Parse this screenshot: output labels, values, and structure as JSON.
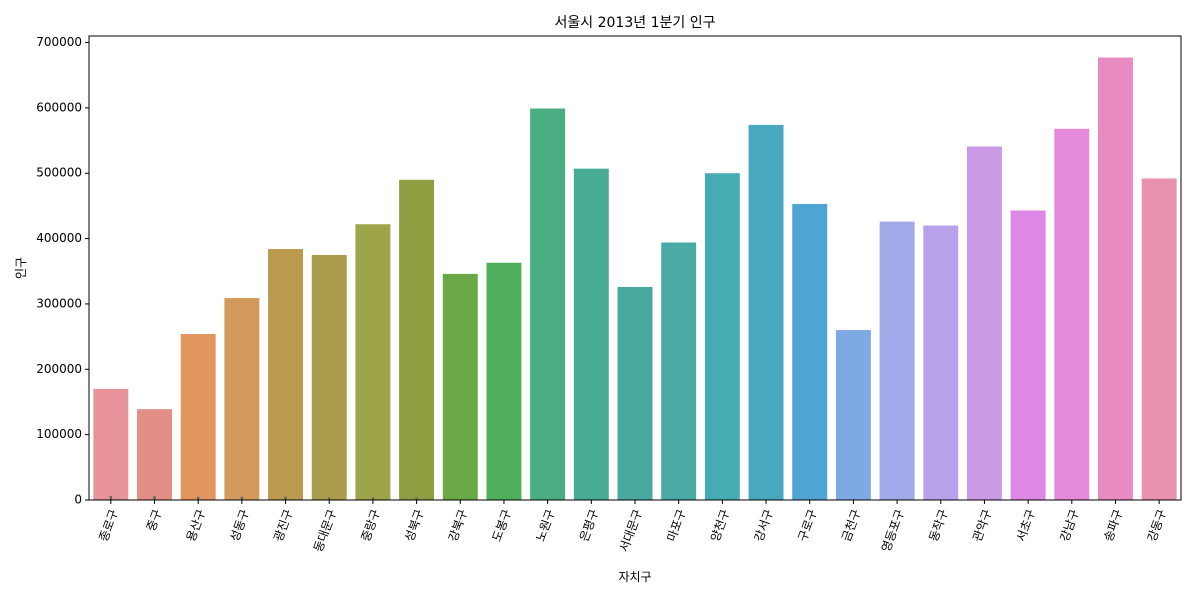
{
  "chart_data": {
    "type": "bar",
    "title": "서울시 2013년 1분기 인구",
    "xlabel": "자치구",
    "ylabel": "인구",
    "ylim": [
      0,
      710000
    ],
    "yticks": [
      0,
      100000,
      200000,
      300000,
      400000,
      500000,
      600000,
      700000
    ],
    "grid": false,
    "categories": [
      "종로구",
      "중구",
      "용산구",
      "성동구",
      "광진구",
      "동대문구",
      "중랑구",
      "성북구",
      "강북구",
      "도봉구",
      "노원구",
      "은평구",
      "서대문구",
      "마포구",
      "양천구",
      "강서구",
      "구로구",
      "금천구",
      "영등포구",
      "동작구",
      "관악구",
      "서초구",
      "강남구",
      "송파구",
      "강동구"
    ],
    "values": [
      170000,
      139000,
      254000,
      309000,
      384000,
      375000,
      422000,
      490000,
      346000,
      363000,
      599000,
      507000,
      326000,
      394000,
      500000,
      574000,
      453000,
      260000,
      426000,
      420000,
      541000,
      443000,
      568000,
      677000,
      492000
    ],
    "error_bars": [
      6000,
      6000,
      5000,
      5000,
      5000,
      4000,
      4000,
      4000,
      0,
      0,
      0,
      0,
      0,
      0,
      0,
      0,
      0,
      0,
      0,
      0,
      0,
      0,
      0,
      0,
      0
    ],
    "colors": [
      "#e8939a",
      "#e28f85",
      "#e39560",
      "#d49a5c",
      "#b99a4f",
      "#ab9b4d",
      "#9ea44a",
      "#8d9f41",
      "#6aa846",
      "#4fae5b",
      "#4aad82",
      "#48ab93",
      "#4aa99e",
      "#4aaba6",
      "#47abb3",
      "#48a8c0",
      "#4ea5d4",
      "#7ea9e3",
      "#a3a8e8",
      "#b7a1e9",
      "#cb9ae7",
      "#de88e6",
      "#e58ad8",
      "#e88bc3",
      "#e891b0"
    ],
    "error_color": "#666666"
  }
}
